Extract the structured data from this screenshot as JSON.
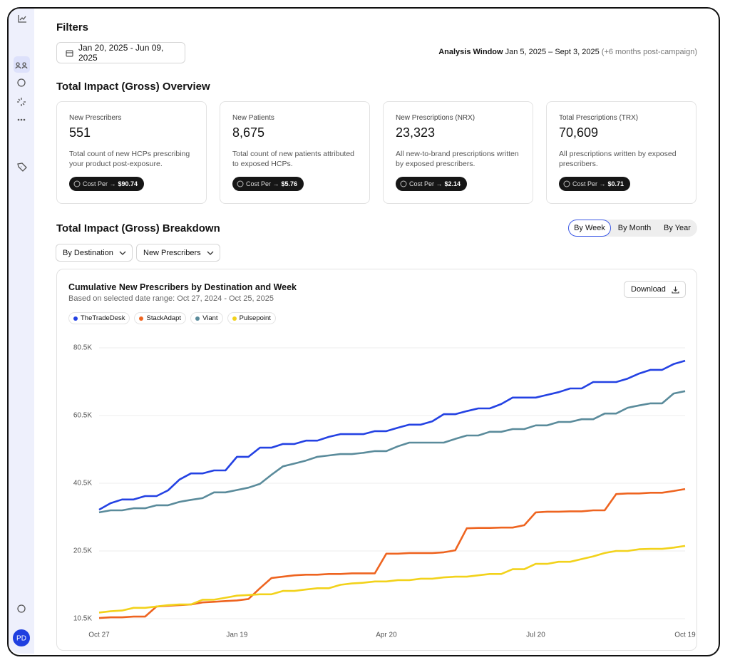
{
  "sidebar": {
    "avatar": "PD"
  },
  "filters": {
    "title": "Filters",
    "date_range": "Jan 20, 2025 - Jun 09, 2025",
    "analysis_label": "Analysis Window",
    "analysis_range": "Jan 5, 2025 – Sept 3, 2025",
    "analysis_note": "(+6 months post-campaign)"
  },
  "overview": {
    "title": "Total Impact (Gross) Overview",
    "cards": [
      {
        "label": "New Prescribers",
        "value": "551",
        "description": "Total count of new HCPs prescribing your product post-exposure.",
        "cost_label": "Cost Per →",
        "cost": "$90.74"
      },
      {
        "label": "New Patients",
        "value": "8,675",
        "description": "Total count of new patients attributed to exposed HCPs.",
        "cost_label": "Cost Per →",
        "cost": "$5.76"
      },
      {
        "label": "New Prescriptions (NRX)",
        "value": "23,323",
        "description": "All new-to-brand prescriptions written by exposed prescribers.",
        "cost_label": "Cost Per →",
        "cost": "$2.14"
      },
      {
        "label": "Total Prescriptions (TRX)",
        "value": "70,609",
        "description": "All prescriptions written by exposed prescribers.",
        "cost_label": "Cost Per →",
        "cost": "$0.71"
      }
    ]
  },
  "breakdown": {
    "title": "Total Impact (Gross) Breakdown",
    "toggle": [
      "By Week",
      "By Month",
      "By Year"
    ],
    "dropdowns": [
      "By Destination",
      "New Prescribers"
    ],
    "download": "Download"
  },
  "chart_data": {
    "type": "line",
    "title": "Cumulative New Prescribers by Destination and Week",
    "subtitle": "Based on selected date range: Oct 27, 2024 - Oct 25, 2025",
    "categories": [
      "Oct 27",
      null,
      null,
      null,
      null,
      null,
      null,
      null,
      null,
      null,
      null,
      null,
      "Jan 19",
      null,
      null,
      null,
      null,
      null,
      null,
      null,
      null,
      null,
      null,
      null,
      null,
      "Apr 20",
      null,
      null,
      null,
      null,
      null,
      null,
      null,
      null,
      null,
      null,
      null,
      null,
      "Jul 20",
      null,
      null,
      null,
      null,
      null,
      null,
      null,
      null,
      null,
      null,
      null,
      null,
      "Oct 19"
    ],
    "ylim": [
      10500,
      80500
    ],
    "yticks": [
      {
        "value": 10500,
        "label": "10.5K"
      },
      {
        "value": 20500,
        "label": "20.5K"
      },
      {
        "value": 40500,
        "label": "40.5K"
      },
      {
        "value": 60500,
        "label": "60.5K"
      },
      {
        "value": 80500,
        "label": "80.5K"
      }
    ],
    "grid": true,
    "series": [
      {
        "name": "TheTradeDesk",
        "color": "#2442e3",
        "values": [
          32700,
          34600,
          35700,
          35700,
          36700,
          36700,
          38400,
          41600,
          43400,
          43400,
          44300,
          44300,
          48300,
          48300,
          51000,
          51000,
          52100,
          52100,
          53100,
          53100,
          54200,
          55000,
          55000,
          55000,
          55900,
          55900,
          56900,
          57800,
          57800,
          58800,
          60900,
          60900,
          61800,
          62600,
          62600,
          63900,
          65800,
          65800,
          65800,
          66600,
          67400,
          68500,
          68500,
          70400,
          70400,
          70400,
          71400,
          72900,
          74000,
          74000,
          75700,
          76700
        ]
      },
      {
        "name": "StackAdapt",
        "color": "#ee6420",
        "values": [
          10600,
          10700,
          10700,
          10800,
          10800,
          12300,
          12400,
          12500,
          12600,
          12900,
          13000,
          13100,
          13200,
          13400,
          15000,
          16500,
          16700,
          16900,
          17000,
          17000,
          17100,
          17100,
          17200,
          17200,
          17200,
          20100,
          20100,
          20200,
          20200,
          20200,
          20300,
          20700,
          27200,
          27300,
          27300,
          27400,
          27400,
          28100,
          31900,
          32100,
          32100,
          32200,
          32200,
          32500,
          32500,
          37300,
          37500,
          37500,
          37700,
          37700,
          38200,
          38800
        ]
      },
      {
        "name": "Viant",
        "color": "#5a8b9b",
        "values": [
          31900,
          32500,
          32500,
          33100,
          33100,
          34000,
          34000,
          35000,
          35600,
          36100,
          37800,
          37800,
          38500,
          39200,
          40300,
          43000,
          45500,
          46300,
          47200,
          48300,
          48700,
          49100,
          49100,
          49500,
          50000,
          50000,
          51400,
          52500,
          52500,
          52500,
          52500,
          53600,
          54600,
          54600,
          55700,
          55700,
          56500,
          56500,
          57600,
          57600,
          58600,
          58600,
          59400,
          59400,
          61100,
          61100,
          62800,
          63500,
          64100,
          64100,
          67000,
          67700
        ]
      },
      {
        "name": "Pulsepoint",
        "color": "#f2d21b",
        "values": [
          11400,
          11600,
          11700,
          12100,
          12100,
          12300,
          12500,
          12600,
          12600,
          13300,
          13300,
          13600,
          13900,
          14000,
          14100,
          14100,
          14600,
          14600,
          14800,
          15000,
          15000,
          15500,
          15700,
          15800,
          16000,
          16000,
          16200,
          16200,
          16400,
          16400,
          16600,
          16700,
          16700,
          16900,
          17100,
          17100,
          17800,
          17800,
          18600,
          18600,
          18900,
          18900,
          19300,
          19700,
          20200,
          20500,
          20500,
          21000,
          21100,
          21100,
          21500,
          22000
        ]
      }
    ]
  }
}
